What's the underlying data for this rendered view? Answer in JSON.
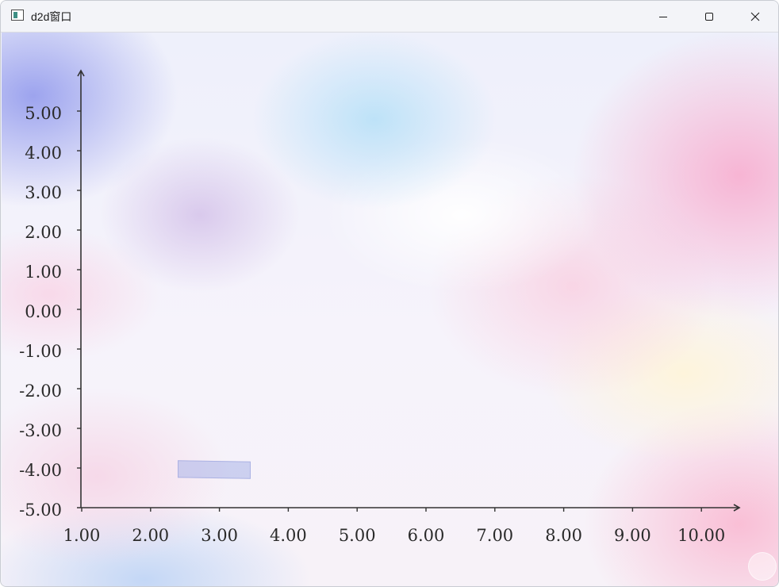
{
  "window": {
    "title": "d2d窗口",
    "icon": "app-window-icon",
    "controls": {
      "minimize": "minimize-icon",
      "maximize": "maximize-icon",
      "close": "close-icon"
    }
  },
  "chart_data": {
    "type": "scatter",
    "title": "",
    "xlabel": "",
    "ylabel": "",
    "x_ticks": [
      "1.00",
      "2.00",
      "3.00",
      "4.00",
      "5.00",
      "6.00",
      "7.00",
      "8.00",
      "9.00",
      "10.00"
    ],
    "y_ticks": [
      "5.00",
      "4.00",
      "3.00",
      "2.00",
      "1.00",
      "0.00",
      "-1.00",
      "-2.00",
      "-3.00",
      "-4.00",
      "-5.00"
    ],
    "xlim": [
      1,
      10
    ],
    "ylim": [
      -5,
      5
    ],
    "grid": false,
    "axis_color": "#333333",
    "series": []
  }
}
